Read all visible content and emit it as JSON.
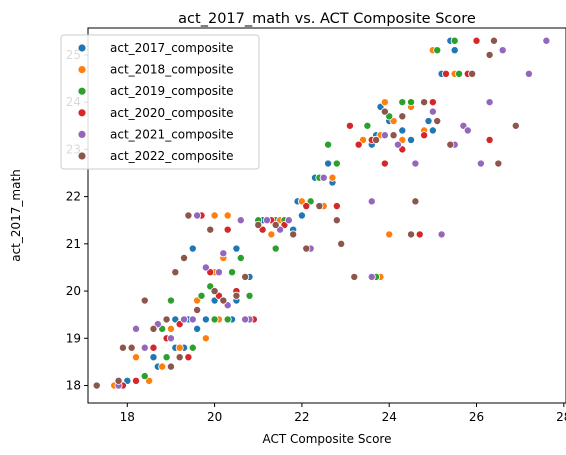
{
  "chart_data": {
    "type": "scatter",
    "title": "act_2017_math vs. ACT Composite Score",
    "xlabel": "ACT Composite Score",
    "ylabel": "act_2017_math",
    "xlim": [
      17.1,
      28.05
    ],
    "ylim": [
      17.63,
      25.57
    ],
    "xticks": [
      18,
      20,
      22,
      24,
      26,
      28
    ],
    "yticks": [
      18,
      19,
      20,
      21,
      22,
      23,
      24,
      25
    ],
    "grid": false,
    "legend_position": "top-left",
    "series": [
      {
        "name": "act_2017_composite",
        "color": "#1f77b4",
        "points": [
          [
            17.8,
            18.0
          ],
          [
            18.0,
            18.1
          ],
          [
            18.6,
            18.6
          ],
          [
            18.7,
            18.4
          ],
          [
            19.0,
            18.4
          ],
          [
            19.1,
            18.8
          ],
          [
            19.3,
            18.8
          ],
          [
            19.6,
            19.2
          ],
          [
            19.4,
            19.4
          ],
          [
            19.8,
            19.4
          ],
          [
            20.0,
            19.8
          ],
          [
            20.3,
            19.4
          ],
          [
            20.5,
            19.8
          ],
          [
            20.8,
            20.3
          ],
          [
            20.4,
            19.4
          ],
          [
            21.1,
            21.5
          ],
          [
            21.4,
            21.5
          ],
          [
            21.5,
            21.3
          ],
          [
            21.8,
            21.3
          ],
          [
            21.9,
            21.9
          ],
          [
            22.0,
            21.6
          ],
          [
            22.3,
            22.4
          ],
          [
            22.6,
            22.7
          ],
          [
            22.7,
            22.3
          ],
          [
            23.6,
            23.1
          ],
          [
            23.7,
            23.3
          ],
          [
            23.8,
            23.9
          ],
          [
            23.9,
            23.3
          ],
          [
            24.0,
            23.6
          ],
          [
            24.2,
            23.1
          ],
          [
            24.3,
            23.4
          ],
          [
            24.5,
            23.2
          ],
          [
            24.9,
            23.6
          ],
          [
            25.0,
            23.4
          ],
          [
            25.2,
            24.6
          ],
          [
            25.4,
            25.3
          ],
          [
            25.5,
            25.1
          ],
          [
            19.5,
            20.9
          ],
          [
            20.5,
            20.9
          ],
          [
            19.1,
            19.4
          ]
        ]
      },
      {
        "name": "act_2018_composite",
        "color": "#ff7f0e",
        "points": [
          [
            17.7,
            18.0
          ],
          [
            18.2,
            18.6
          ],
          [
            18.5,
            18.1
          ],
          [
            18.8,
            18.4
          ],
          [
            19.2,
            18.8
          ],
          [
            19.0,
            19.2
          ],
          [
            19.5,
            19.4
          ],
          [
            19.8,
            19.0
          ],
          [
            20.0,
            20.4
          ],
          [
            20.2,
            20.7
          ],
          [
            20.3,
            21.6
          ],
          [
            20.0,
            21.6
          ],
          [
            20.5,
            19.9
          ],
          [
            20.7,
            19.4
          ],
          [
            21.3,
            21.2
          ],
          [
            21.5,
            21.5
          ],
          [
            22.0,
            21.9
          ],
          [
            22.5,
            21.8
          ],
          [
            22.7,
            22.4
          ],
          [
            23.4,
            23.2
          ],
          [
            23.8,
            23.3
          ],
          [
            23.9,
            24.0
          ],
          [
            24.1,
            23.6
          ],
          [
            24.3,
            23.2
          ],
          [
            24.5,
            23.9
          ],
          [
            24.8,
            23.4
          ],
          [
            23.8,
            20.3
          ],
          [
            24.0,
            21.2
          ],
          [
            25.0,
            25.1
          ],
          [
            25.5,
            24.6
          ],
          [
            19.6,
            19.8
          ],
          [
            20.1,
            19.4
          ]
        ]
      },
      {
        "name": "act_2019_composite",
        "color": "#2ca02c",
        "points": [
          [
            17.9,
            18.0
          ],
          [
            18.4,
            18.2
          ],
          [
            18.9,
            18.6
          ],
          [
            19.0,
            19.8
          ],
          [
            19.3,
            19.4
          ],
          [
            19.5,
            18.8
          ],
          [
            19.7,
            19.9
          ],
          [
            20.0,
            19.4
          ],
          [
            20.4,
            20.4
          ],
          [
            20.6,
            20.7
          ],
          [
            20.8,
            19.9
          ],
          [
            21.0,
            21.5
          ],
          [
            21.4,
            20.9
          ],
          [
            21.6,
            21.5
          ],
          [
            22.2,
            21.9
          ],
          [
            22.4,
            22.4
          ],
          [
            22.6,
            23.1
          ],
          [
            22.8,
            22.7
          ],
          [
            23.5,
            23.5
          ],
          [
            23.7,
            23.2
          ],
          [
            24.0,
            23.7
          ],
          [
            24.3,
            24.0
          ],
          [
            24.5,
            24.0
          ],
          [
            23.7,
            20.3
          ],
          [
            25.1,
            25.1
          ],
          [
            25.5,
            25.3
          ],
          [
            25.6,
            24.6
          ],
          [
            20.3,
            19.4
          ],
          [
            18.8,
            19.2
          ],
          [
            19.9,
            20.1
          ]
        ]
      },
      {
        "name": "act_2020_composite",
        "color": "#d62728",
        "points": [
          [
            17.9,
            18.0
          ],
          [
            18.2,
            18.1
          ],
          [
            18.6,
            18.8
          ],
          [
            18.9,
            19.0
          ],
          [
            19.2,
            19.3
          ],
          [
            19.4,
            18.6
          ],
          [
            19.7,
            21.6
          ],
          [
            19.9,
            20.4
          ],
          [
            20.1,
            19.9
          ],
          [
            20.3,
            21.3
          ],
          [
            20.5,
            20.0
          ],
          [
            20.9,
            19.4
          ],
          [
            21.1,
            21.3
          ],
          [
            21.3,
            21.5
          ],
          [
            21.6,
            21.4
          ],
          [
            22.1,
            21.8
          ],
          [
            22.5,
            22.4
          ],
          [
            22.8,
            21.8
          ],
          [
            23.1,
            23.5
          ],
          [
            23.3,
            23.1
          ],
          [
            23.6,
            23.2
          ],
          [
            23.9,
            22.7
          ],
          [
            24.3,
            23.0
          ],
          [
            24.7,
            21.2
          ],
          [
            24.8,
            23.3
          ],
          [
            25.0,
            24.0
          ],
          [
            25.3,
            24.6
          ],
          [
            25.8,
            24.6
          ],
          [
            26.0,
            25.3
          ],
          [
            26.3,
            23.2
          ]
        ]
      },
      {
        "name": "act_2021_composite",
        "color": "#9467bd",
        "points": [
          [
            17.8,
            18.0
          ],
          [
            18.2,
            19.2
          ],
          [
            18.4,
            18.8
          ],
          [
            18.7,
            19.3
          ],
          [
            19.0,
            19.0
          ],
          [
            19.3,
            19.4
          ],
          [
            19.6,
            21.6
          ],
          [
            19.8,
            20.5
          ],
          [
            20.1,
            20.4
          ],
          [
            20.3,
            19.7
          ],
          [
            20.6,
            21.5
          ],
          [
            20.8,
            19.4
          ],
          [
            21.2,
            21.5
          ],
          [
            21.5,
            21.3
          ],
          [
            21.7,
            21.5
          ],
          [
            22.2,
            20.9
          ],
          [
            22.5,
            22.4
          ],
          [
            23.6,
            21.9
          ],
          [
            23.6,
            20.3
          ],
          [
            23.9,
            23.3
          ],
          [
            24.2,
            23.1
          ],
          [
            24.6,
            22.7
          ],
          [
            25.0,
            23.8
          ],
          [
            25.2,
            21.2
          ],
          [
            25.5,
            23.1
          ],
          [
            25.7,
            23.5
          ],
          [
            25.8,
            23.4
          ],
          [
            26.1,
            22.7
          ],
          [
            26.3,
            24.0
          ],
          [
            26.6,
            25.1
          ],
          [
            27.2,
            24.6
          ],
          [
            27.6,
            25.3
          ],
          [
            19.5,
            19.4
          ],
          [
            20.2,
            20.8
          ],
          [
            20.7,
            19.4
          ]
        ]
      },
      {
        "name": "act_2022_composite",
        "color": "#8c564b",
        "points": [
          [
            17.3,
            18.0
          ],
          [
            17.8,
            18.1
          ],
          [
            17.9,
            18.8
          ],
          [
            18.1,
            18.8
          ],
          [
            18.4,
            19.8
          ],
          [
            18.6,
            19.2
          ],
          [
            18.9,
            19.4
          ],
          [
            19.0,
            18.4
          ],
          [
            19.1,
            20.4
          ],
          [
            19.3,
            20.7
          ],
          [
            19.4,
            21.6
          ],
          [
            19.6,
            19.6
          ],
          [
            19.9,
            21.3
          ],
          [
            20.0,
            20.0
          ],
          [
            20.2,
            19.8
          ],
          [
            20.5,
            19.9
          ],
          [
            20.7,
            20.3
          ],
          [
            21.0,
            21.4
          ],
          [
            21.4,
            21.4
          ],
          [
            21.8,
            21.2
          ],
          [
            22.1,
            20.9
          ],
          [
            22.4,
            21.8
          ],
          [
            22.8,
            21.5
          ],
          [
            22.9,
            21.0
          ],
          [
            23.2,
            20.3
          ],
          [
            23.7,
            23.2
          ],
          [
            23.9,
            23.8
          ],
          [
            24.1,
            23.3
          ],
          [
            24.3,
            23.7
          ],
          [
            24.5,
            21.2
          ],
          [
            24.6,
            21.9
          ],
          [
            24.8,
            24.0
          ],
          [
            25.1,
            23.6
          ],
          [
            25.4,
            23.1
          ],
          [
            25.9,
            24.6
          ],
          [
            26.3,
            25.0
          ],
          [
            26.5,
            22.7
          ],
          [
            26.9,
            23.5
          ],
          [
            26.4,
            25.3
          ],
          [
            19.2,
            18.6
          ]
        ]
      }
    ]
  }
}
